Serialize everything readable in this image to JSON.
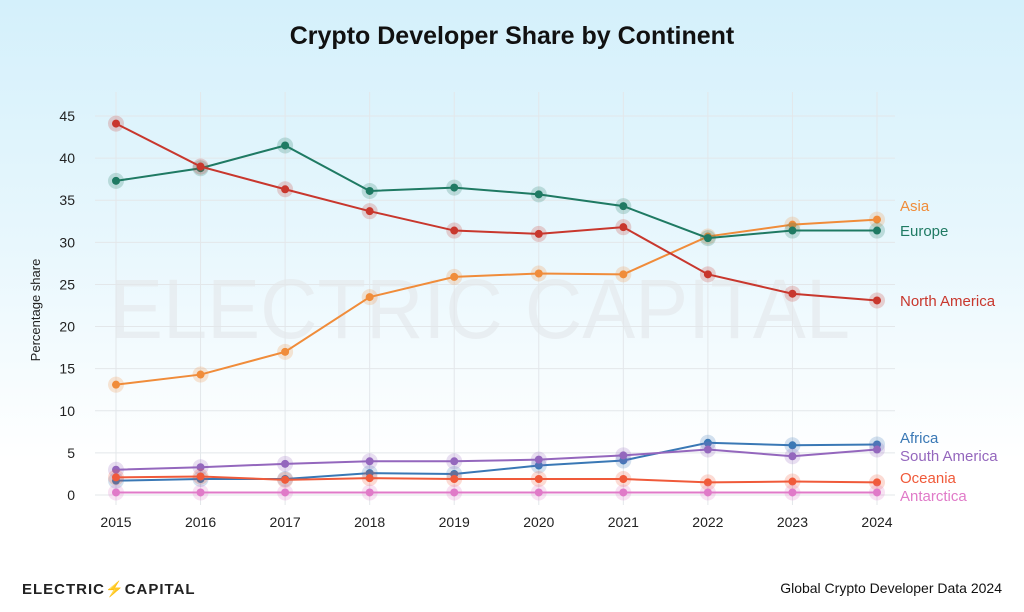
{
  "chart_data": {
    "type": "line",
    "title": "Crypto Developer Share by Continent",
    "xlabel": "",
    "ylabel": "Percentage share",
    "x": [
      2015,
      2016,
      2017,
      2018,
      2019,
      2020,
      2021,
      2022,
      2023,
      2024
    ],
    "ylim": [
      0,
      47
    ],
    "yticks": [
      0,
      5,
      10,
      15,
      20,
      25,
      30,
      35,
      40,
      45
    ],
    "grid": true,
    "legend": "right-end labels",
    "series": [
      {
        "name": "Asia",
        "color": "#f08c3a",
        "values": [
          13.1,
          14.3,
          17.0,
          23.5,
          25.9,
          26.3,
          26.2,
          30.7,
          32.1,
          32.7
        ]
      },
      {
        "name": "Europe",
        "color": "#1f7a63",
        "values": [
          37.3,
          38.8,
          41.5,
          36.1,
          36.5,
          35.7,
          34.3,
          30.5,
          31.4,
          31.4
        ]
      },
      {
        "name": "North America",
        "color": "#c8372d",
        "values": [
          44.1,
          39.0,
          36.3,
          33.7,
          31.4,
          31.0,
          31.8,
          26.2,
          23.9,
          23.1
        ]
      },
      {
        "name": "Africa",
        "color": "#3a78b5",
        "values": [
          1.7,
          1.9,
          1.9,
          2.6,
          2.5,
          3.5,
          4.1,
          6.2,
          5.9,
          6.0
        ]
      },
      {
        "name": "South America",
        "color": "#9467bd",
        "values": [
          3.0,
          3.3,
          3.7,
          4.0,
          4.0,
          4.2,
          4.7,
          5.4,
          4.6,
          5.4
        ]
      },
      {
        "name": "Oceania",
        "color": "#f05a3a",
        "values": [
          2.1,
          2.2,
          1.8,
          2.0,
          1.9,
          1.9,
          1.9,
          1.5,
          1.6,
          1.5
        ]
      },
      {
        "name": "Antarctica",
        "color": "#e07ac8",
        "values": [
          0.3,
          0.3,
          0.3,
          0.3,
          0.3,
          0.3,
          0.3,
          0.3,
          0.3,
          0.3
        ]
      }
    ]
  },
  "watermark": "ELECTRIC CAPITAL",
  "footer": {
    "logo": "ELECTRIC CAPITAL",
    "source": "Global Crypto Developer Data 2024"
  }
}
